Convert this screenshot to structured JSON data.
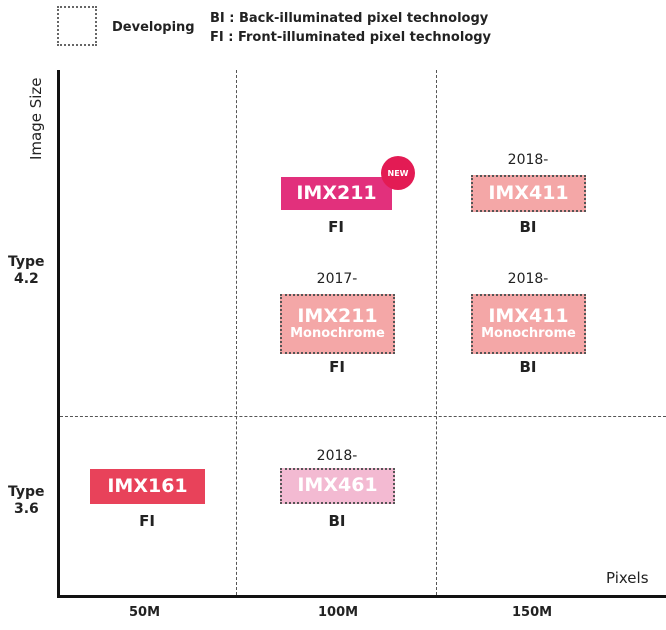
{
  "legend": {
    "developing": "Developing",
    "bi": "BI : Back-illuminated pixel technology",
    "fi": "FI : Front-illuminated pixel technology"
  },
  "axes": {
    "y_label": "Image Size",
    "x_label": "Pixels",
    "y_ticks": [
      {
        "line1": "Type",
        "line2": "4.2"
      },
      {
        "line1": "Type",
        "line2": "3.6"
      }
    ],
    "x_ticks": [
      "50M",
      "100M",
      "150M"
    ]
  },
  "colors": {
    "imx211": "#e2307c",
    "imx161": "#e8425a",
    "developing": "#f4a7a7",
    "imx461": "#f3bad2",
    "new_badge": "#e31b54"
  },
  "sensors": [
    {
      "name": "IMX211",
      "sub": "",
      "year": "",
      "tech": "FI",
      "badge": "NEW",
      "developing": false
    },
    {
      "name": "IMX411",
      "sub": "",
      "year": "2018-",
      "tech": "BI",
      "developing": true
    },
    {
      "name": "IMX211",
      "sub": "Monochrome",
      "year": "2017-",
      "tech": "FI",
      "developing": true
    },
    {
      "name": "IMX411",
      "sub": "Monochrome",
      "year": "2018-",
      "tech": "BI",
      "developing": true
    },
    {
      "name": "IMX161",
      "sub": "",
      "year": "",
      "tech": "FI",
      "developing": false
    },
    {
      "name": "IMX461",
      "sub": "",
      "year": "2018-",
      "tech": "BI",
      "developing": true
    }
  ]
}
